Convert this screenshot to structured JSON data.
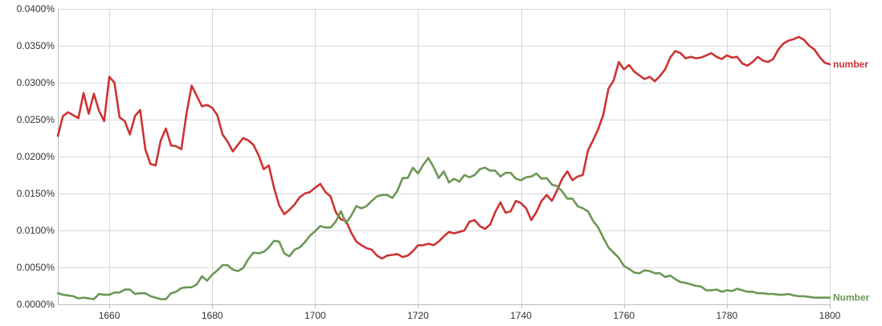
{
  "chart_data": {
    "type": "line",
    "xlim": [
      1650,
      1800
    ],
    "ylim": [
      0,
      0.04
    ],
    "grid": true,
    "x_ticks": [
      "1660",
      "1680",
      "1700",
      "1720",
      "1740",
      "1760",
      "1780",
      "1800"
    ],
    "y_ticks": [
      "0.0000%",
      "0.0050%",
      "0.0100%",
      "0.0150%",
      "0.0200%",
      "0.0250%",
      "0.0300%",
      "0.0350%",
      "0.0400%"
    ],
    "x_tick_values": [
      1660,
      1680,
      1700,
      1720,
      1740,
      1760,
      1780,
      1800
    ],
    "y_tick_values": [
      0,
      0.005,
      0.01,
      0.015,
      0.02,
      0.025,
      0.03,
      0.035,
      0.04
    ],
    "series": [
      {
        "name": "number",
        "color": "#cc3333",
        "points": [
          [
            1650,
            0.0228
          ],
          [
            1651,
            0.0255
          ],
          [
            1652,
            0.026
          ],
          [
            1653,
            0.0256
          ],
          [
            1654,
            0.0252
          ],
          [
            1655,
            0.0286
          ],
          [
            1656,
            0.0258
          ],
          [
            1657,
            0.0285
          ],
          [
            1658,
            0.0262
          ],
          [
            1659,
            0.0248
          ],
          [
            1660,
            0.0308
          ],
          [
            1661,
            0.03
          ],
          [
            1662,
            0.0253
          ],
          [
            1663,
            0.0248
          ],
          [
            1664,
            0.023
          ],
          [
            1665,
            0.0255
          ],
          [
            1666,
            0.0263
          ],
          [
            1667,
            0.021
          ],
          [
            1668,
            0.019
          ],
          [
            1669,
            0.0188
          ],
          [
            1670,
            0.0222
          ],
          [
            1671,
            0.0238
          ],
          [
            1672,
            0.0215
          ],
          [
            1673,
            0.0214
          ],
          [
            1674,
            0.021
          ],
          [
            1675,
            0.0258
          ],
          [
            1676,
            0.0296
          ],
          [
            1677,
            0.0282
          ],
          [
            1678,
            0.0268
          ],
          [
            1679,
            0.027
          ],
          [
            1680,
            0.0266
          ],
          [
            1681,
            0.0256
          ],
          [
            1682,
            0.023
          ],
          [
            1683,
            0.022
          ],
          [
            1684,
            0.0207
          ],
          [
            1685,
            0.0216
          ],
          [
            1686,
            0.0225
          ],
          [
            1687,
            0.0222
          ],
          [
            1688,
            0.0216
          ],
          [
            1689,
            0.0202
          ],
          [
            1690,
            0.0183
          ],
          [
            1691,
            0.0188
          ],
          [
            1692,
            0.0158
          ],
          [
            1693,
            0.0134
          ],
          [
            1694,
            0.0122
          ],
          [
            1695,
            0.0128
          ],
          [
            1696,
            0.0135
          ],
          [
            1697,
            0.0145
          ],
          [
            1698,
            0.015
          ],
          [
            1699,
            0.0152
          ],
          [
            1700,
            0.0158
          ],
          [
            1701,
            0.0163
          ],
          [
            1702,
            0.0152
          ],
          [
            1703,
            0.0146
          ],
          [
            1704,
            0.0125
          ],
          [
            1705,
            0.0115
          ],
          [
            1706,
            0.0113
          ],
          [
            1707,
            0.0097
          ],
          [
            1708,
            0.0085
          ],
          [
            1709,
            0.008
          ],
          [
            1710,
            0.0076
          ],
          [
            1711,
            0.0074
          ],
          [
            1712,
            0.0066
          ],
          [
            1713,
            0.0062
          ],
          [
            1714,
            0.0066
          ],
          [
            1715,
            0.0067
          ],
          [
            1716,
            0.0068
          ],
          [
            1717,
            0.0064
          ],
          [
            1718,
            0.0066
          ],
          [
            1719,
            0.0072
          ],
          [
            1720,
            0.008
          ],
          [
            1721,
            0.008
          ],
          [
            1722,
            0.0082
          ],
          [
            1723,
            0.008
          ],
          [
            1724,
            0.0085
          ],
          [
            1725,
            0.0092
          ],
          [
            1726,
            0.0098
          ],
          [
            1727,
            0.0096
          ],
          [
            1728,
            0.0098
          ],
          [
            1729,
            0.01
          ],
          [
            1730,
            0.0112
          ],
          [
            1731,
            0.0114
          ],
          [
            1732,
            0.0106
          ],
          [
            1733,
            0.0102
          ],
          [
            1734,
            0.0108
          ],
          [
            1735,
            0.0125
          ],
          [
            1736,
            0.0138
          ],
          [
            1737,
            0.0124
          ],
          [
            1738,
            0.0126
          ],
          [
            1739,
            0.014
          ],
          [
            1740,
            0.0137
          ],
          [
            1741,
            0.013
          ],
          [
            1742,
            0.0114
          ],
          [
            1743,
            0.0125
          ],
          [
            1744,
            0.014
          ],
          [
            1745,
            0.0148
          ],
          [
            1746,
            0.014
          ],
          [
            1747,
            0.0154
          ],
          [
            1748,
            0.017
          ],
          [
            1749,
            0.018
          ],
          [
            1750,
            0.0168
          ],
          [
            1751,
            0.0173
          ],
          [
            1752,
            0.0175
          ],
          [
            1753,
            0.0208
          ],
          [
            1754,
            0.0222
          ],
          [
            1755,
            0.0237
          ],
          [
            1756,
            0.0257
          ],
          [
            1757,
            0.0292
          ],
          [
            1758,
            0.0303
          ],
          [
            1759,
            0.0328
          ],
          [
            1760,
            0.0318
          ],
          [
            1761,
            0.0324
          ],
          [
            1762,
            0.0315
          ],
          [
            1763,
            0.031
          ],
          [
            1764,
            0.0305
          ],
          [
            1765,
            0.0308
          ],
          [
            1766,
            0.0302
          ],
          [
            1767,
            0.0309
          ],
          [
            1768,
            0.0318
          ],
          [
            1769,
            0.0334
          ],
          [
            1770,
            0.0343
          ],
          [
            1771,
            0.034
          ],
          [
            1772,
            0.0333
          ],
          [
            1773,
            0.0335
          ],
          [
            1774,
            0.0333
          ],
          [
            1775,
            0.0334
          ],
          [
            1776,
            0.0337
          ],
          [
            1777,
            0.034
          ],
          [
            1778,
            0.0335
          ],
          [
            1779,
            0.0332
          ],
          [
            1780,
            0.0337
          ],
          [
            1781,
            0.0334
          ],
          [
            1782,
            0.0335
          ],
          [
            1783,
            0.0326
          ],
          [
            1784,
            0.0323
          ],
          [
            1785,
            0.0328
          ],
          [
            1786,
            0.0335
          ],
          [
            1787,
            0.033
          ],
          [
            1788,
            0.0328
          ],
          [
            1789,
            0.0332
          ],
          [
            1790,
            0.0345
          ],
          [
            1791,
            0.0353
          ],
          [
            1792,
            0.0357
          ],
          [
            1793,
            0.0359
          ],
          [
            1794,
            0.0362
          ],
          [
            1795,
            0.0358
          ],
          [
            1796,
            0.035
          ],
          [
            1797,
            0.0345
          ],
          [
            1798,
            0.0335
          ],
          [
            1799,
            0.0327
          ],
          [
            1800,
            0.0325
          ]
        ]
      },
      {
        "name": "Number",
        "color": "#6c9755",
        "points": [
          [
            1650,
            0.0015
          ],
          [
            1651,
            0.0013
          ],
          [
            1652,
            0.0012
          ],
          [
            1653,
            0.0011
          ],
          [
            1654,
            0.0008
          ],
          [
            1655,
            0.0009
          ],
          [
            1656,
            0.0008
          ],
          [
            1657,
            0.0007
          ],
          [
            1658,
            0.0014
          ],
          [
            1659,
            0.0013
          ],
          [
            1660,
            0.0013
          ],
          [
            1661,
            0.0016
          ],
          [
            1662,
            0.0016
          ],
          [
            1663,
            0.002
          ],
          [
            1664,
            0.002
          ],
          [
            1665,
            0.0014
          ],
          [
            1666,
            0.0015
          ],
          [
            1667,
            0.0015
          ],
          [
            1668,
            0.0011
          ],
          [
            1669,
            0.0009
          ],
          [
            1670,
            0.0007
          ],
          [
            1671,
            0.0007
          ],
          [
            1672,
            0.0015
          ],
          [
            1673,
            0.0017
          ],
          [
            1674,
            0.0022
          ],
          [
            1675,
            0.0023
          ],
          [
            1676,
            0.0023
          ],
          [
            1677,
            0.0027
          ],
          [
            1678,
            0.0038
          ],
          [
            1679,
            0.0032
          ],
          [
            1680,
            0.004
          ],
          [
            1681,
            0.0046
          ],
          [
            1682,
            0.0053
          ],
          [
            1683,
            0.0053
          ],
          [
            1684,
            0.0047
          ],
          [
            1685,
            0.0045
          ],
          [
            1686,
            0.0049
          ],
          [
            1687,
            0.0061
          ],
          [
            1688,
            0.007
          ],
          [
            1689,
            0.0069
          ],
          [
            1690,
            0.0071
          ],
          [
            1691,
            0.0077
          ],
          [
            1692,
            0.0086
          ],
          [
            1693,
            0.0085
          ],
          [
            1694,
            0.0069
          ],
          [
            1695,
            0.0065
          ],
          [
            1696,
            0.0074
          ],
          [
            1697,
            0.0077
          ],
          [
            1698,
            0.0084
          ],
          [
            1699,
            0.0093
          ],
          [
            1700,
            0.0099
          ],
          [
            1701,
            0.0106
          ],
          [
            1702,
            0.0104
          ],
          [
            1703,
            0.0104
          ],
          [
            1704,
            0.0112
          ],
          [
            1705,
            0.0126
          ],
          [
            1706,
            0.011
          ],
          [
            1707,
            0.012
          ],
          [
            1708,
            0.0133
          ],
          [
            1709,
            0.013
          ],
          [
            1710,
            0.0133
          ],
          [
            1711,
            0.014
          ],
          [
            1712,
            0.0146
          ],
          [
            1713,
            0.0148
          ],
          [
            1714,
            0.0148
          ],
          [
            1715,
            0.0144
          ],
          [
            1716,
            0.0154
          ],
          [
            1717,
            0.0171
          ],
          [
            1718,
            0.0171
          ],
          [
            1719,
            0.0185
          ],
          [
            1720,
            0.0177
          ],
          [
            1721,
            0.0189
          ],
          [
            1722,
            0.0198
          ],
          [
            1723,
            0.0186
          ],
          [
            1724,
            0.0171
          ],
          [
            1725,
            0.018
          ],
          [
            1726,
            0.0165
          ],
          [
            1727,
            0.017
          ],
          [
            1728,
            0.0166
          ],
          [
            1729,
            0.0175
          ],
          [
            1730,
            0.0172
          ],
          [
            1731,
            0.0175
          ],
          [
            1732,
            0.0183
          ],
          [
            1733,
            0.0185
          ],
          [
            1734,
            0.0181
          ],
          [
            1735,
            0.0181
          ],
          [
            1736,
            0.0173
          ],
          [
            1737,
            0.0178
          ],
          [
            1738,
            0.0178
          ],
          [
            1739,
            0.017
          ],
          [
            1740,
            0.0168
          ],
          [
            1741,
            0.0172
          ],
          [
            1742,
            0.0173
          ],
          [
            1743,
            0.0177
          ],
          [
            1744,
            0.017
          ],
          [
            1745,
            0.0171
          ],
          [
            1746,
            0.0162
          ],
          [
            1747,
            0.016
          ],
          [
            1748,
            0.0153
          ],
          [
            1749,
            0.0143
          ],
          [
            1750,
            0.0143
          ],
          [
            1751,
            0.0133
          ],
          [
            1752,
            0.013
          ],
          [
            1753,
            0.0126
          ],
          [
            1754,
            0.0113
          ],
          [
            1755,
            0.0104
          ],
          [
            1756,
            0.009
          ],
          [
            1757,
            0.0077
          ],
          [
            1758,
            0.007
          ],
          [
            1759,
            0.0063
          ],
          [
            1760,
            0.0052
          ],
          [
            1761,
            0.0048
          ],
          [
            1762,
            0.0043
          ],
          [
            1763,
            0.0042
          ],
          [
            1764,
            0.0046
          ],
          [
            1765,
            0.0045
          ],
          [
            1766,
            0.0042
          ],
          [
            1767,
            0.0042
          ],
          [
            1768,
            0.0037
          ],
          [
            1769,
            0.0039
          ],
          [
            1770,
            0.0034
          ],
          [
            1771,
            0.003
          ],
          [
            1772,
            0.0029
          ],
          [
            1773,
            0.0027
          ],
          [
            1774,
            0.0025
          ],
          [
            1775,
            0.0024
          ],
          [
            1776,
            0.0019
          ],
          [
            1777,
            0.0019
          ],
          [
            1778,
            0.002
          ],
          [
            1779,
            0.0017
          ],
          [
            1780,
            0.0019
          ],
          [
            1781,
            0.0018
          ],
          [
            1782,
            0.0021
          ],
          [
            1783,
            0.0019
          ],
          [
            1784,
            0.0017
          ],
          [
            1785,
            0.0017
          ],
          [
            1786,
            0.0015
          ],
          [
            1787,
            0.0015
          ],
          [
            1788,
            0.0014
          ],
          [
            1789,
            0.0014
          ],
          [
            1790,
            0.0013
          ],
          [
            1791,
            0.0013
          ],
          [
            1792,
            0.0014
          ],
          [
            1793,
            0.0012
          ],
          [
            1794,
            0.0011
          ],
          [
            1795,
            0.0011
          ],
          [
            1796,
            0.001
          ],
          [
            1797,
            0.0009
          ],
          [
            1798,
            0.0009
          ],
          [
            1799,
            0.0009
          ],
          [
            1800,
            0.0009
          ]
        ]
      }
    ]
  }
}
